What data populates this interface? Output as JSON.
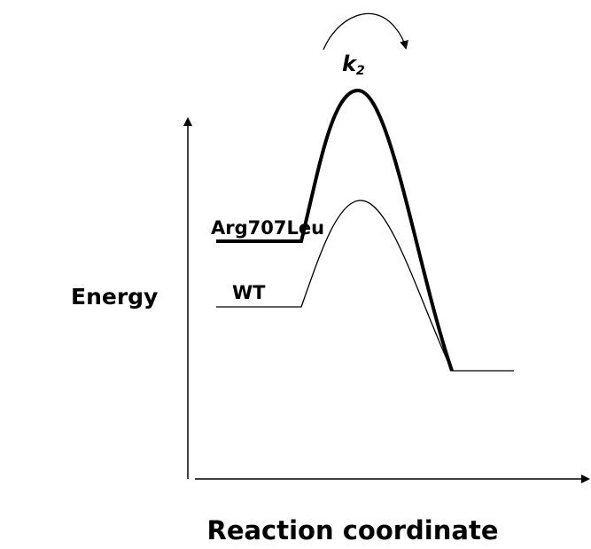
{
  "axes": {
    "y_label": "Energy",
    "x_label": "Reaction coordinate"
  },
  "states": [
    {
      "label": "Arg707Leu"
    },
    {
      "label": "WT"
    }
  ],
  "rate_constant": {
    "symbol": "k",
    "subscript": "2"
  }
}
